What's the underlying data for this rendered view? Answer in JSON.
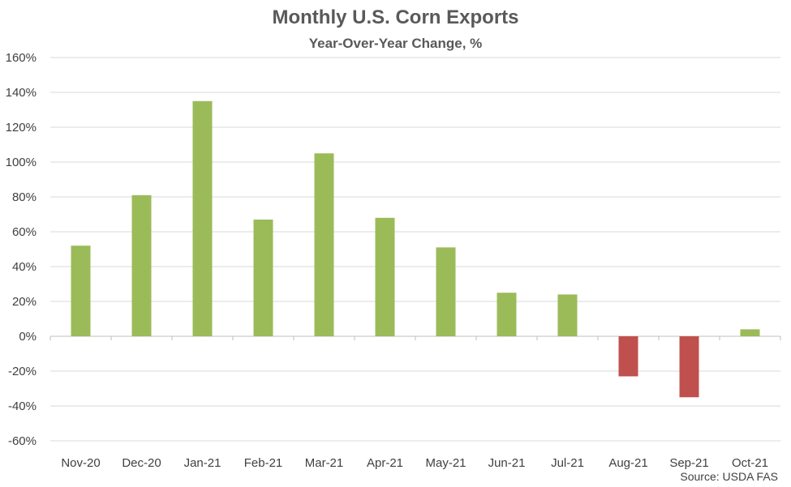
{
  "chart_data": {
    "type": "bar",
    "title": "Monthly U.S. Corn Exports",
    "subtitle": "Year-Over-Year Change, %",
    "source": "Source: USDA FAS",
    "categories": [
      "Nov-20",
      "Dec-20",
      "Jan-21",
      "Feb-21",
      "Mar-21",
      "Apr-21",
      "May-21",
      "Jun-21",
      "Jul-21",
      "Aug-21",
      "Sep-21",
      "Oct-21"
    ],
    "values": [
      52,
      81,
      135,
      67,
      105,
      68,
      51,
      25,
      24,
      -23,
      -35,
      4
    ],
    "ylim": [
      -60,
      160
    ],
    "yticks": [
      -60,
      -40,
      -20,
      0,
      20,
      40,
      60,
      80,
      100,
      120,
      140,
      160
    ],
    "ytick_labels": [
      "-60%",
      "-40%",
      "-20%",
      "0%",
      "20%",
      "40%",
      "60%",
      "80%",
      "100%",
      "120%",
      "140%",
      "160%"
    ],
    "grid": true,
    "colors": {
      "positive": "#9bbb59",
      "negative": "#c0504d",
      "grid": "#d9d9d9"
    }
  }
}
